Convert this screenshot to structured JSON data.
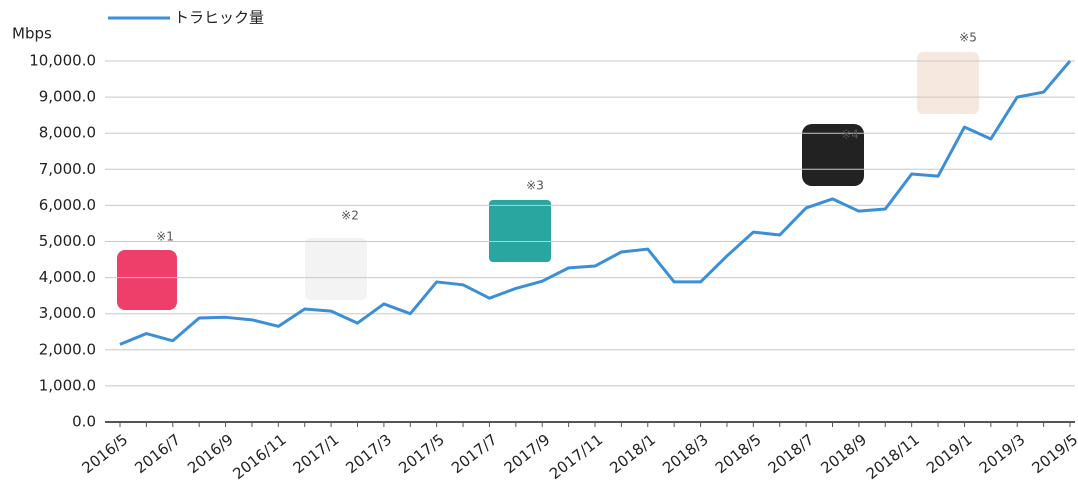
{
  "chart_data": {
    "type": "line",
    "y_label": "Mbps",
    "categories": [
      "2016/5",
      null,
      "2016/7",
      null,
      "2016/9",
      null,
      "2016/11",
      null,
      "2017/1",
      null,
      "2017/3",
      null,
      "2017/5",
      null,
      "2017/7",
      null,
      "2017/9",
      null,
      "2017/11",
      null,
      "2018/1",
      null,
      "2018/3",
      null,
      "2018/5",
      null,
      "2018/7",
      null,
      "2018/9",
      null,
      "2018/11",
      null,
      "2019/1",
      null,
      "2019/3",
      null,
      "2019/5"
    ],
    "series": [
      {
        "name": "トラヒック量",
        "color": "#3b8fd6",
        "values": [
          2150,
          2450,
          2250,
          2880,
          2900,
          2830,
          2650,
          3130,
          3070,
          2740,
          3270,
          3000,
          3880,
          3800,
          3430,
          3700,
          3900,
          4270,
          4320,
          4710,
          4790,
          3880,
          3880,
          4600,
          5260,
          5180,
          5930,
          6180,
          5840,
          5900,
          6870,
          6810,
          8170,
          7840,
          9000,
          9140,
          10000
        ]
      }
    ],
    "ylim": [
      0,
      10000
    ],
    "yticks": [
      {
        "value": 0,
        "label": "0.0"
      },
      {
        "value": 1000,
        "label": "1,000.0"
      },
      {
        "value": 2000,
        "label": "2,000.0"
      },
      {
        "value": 3000,
        "label": "3,000.0"
      },
      {
        "value": 4000,
        "label": "4,000.0"
      },
      {
        "value": 5000,
        "label": "5,000.0"
      },
      {
        "value": 6000,
        "label": "6,000.0"
      },
      {
        "value": 7000,
        "label": "7,000.0"
      },
      {
        "value": 8000,
        "label": "8,000.0"
      },
      {
        "value": 9000,
        "label": "9,000.0"
      },
      {
        "value": 10000,
        "label": "10,000.0"
      }
    ],
    "grid": true,
    "annotations": [
      "※1",
      "※2",
      "※3",
      "※4",
      "※5"
    ]
  }
}
